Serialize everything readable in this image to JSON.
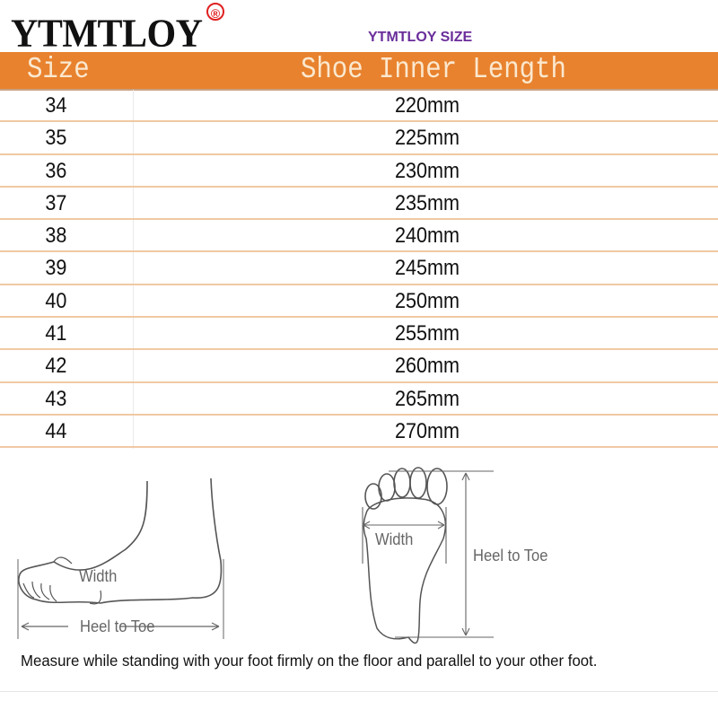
{
  "brand": {
    "logo_text": "YTMTLOY",
    "registered_mark": "®",
    "subtitle": "YTMTLOY SIZE"
  },
  "table": {
    "headers": [
      "Size",
      "Shoe Inner Length"
    ],
    "rows": [
      {
        "size": "34",
        "length": "220mm"
      },
      {
        "size": "35",
        "length": "225mm"
      },
      {
        "size": "36",
        "length": "230mm"
      },
      {
        "size": "37",
        "length": "235mm"
      },
      {
        "size": "38",
        "length": "240mm"
      },
      {
        "size": "39",
        "length": "245mm"
      },
      {
        "size": "40",
        "length": "250mm"
      },
      {
        "size": "41",
        "length": "255mm"
      },
      {
        "size": "42",
        "length": "260mm"
      },
      {
        "size": "43",
        "length": "265mm"
      },
      {
        "size": "44",
        "length": "270mm"
      }
    ]
  },
  "diagram": {
    "side_width_label": "Width",
    "side_length_label": "Heel to Toe",
    "sole_width_label": "Width",
    "sole_length_label": "Heel to Toe",
    "instruction": "Measure while standing with your foot firmly on the floor and parallel to your other foot."
  },
  "colors": {
    "header_bg": "#e8822e",
    "header_text": "#fbe8cf",
    "subtitle": "#6a2d9a",
    "row_divider": "#f0c9a3",
    "registered": "#e02020"
  }
}
